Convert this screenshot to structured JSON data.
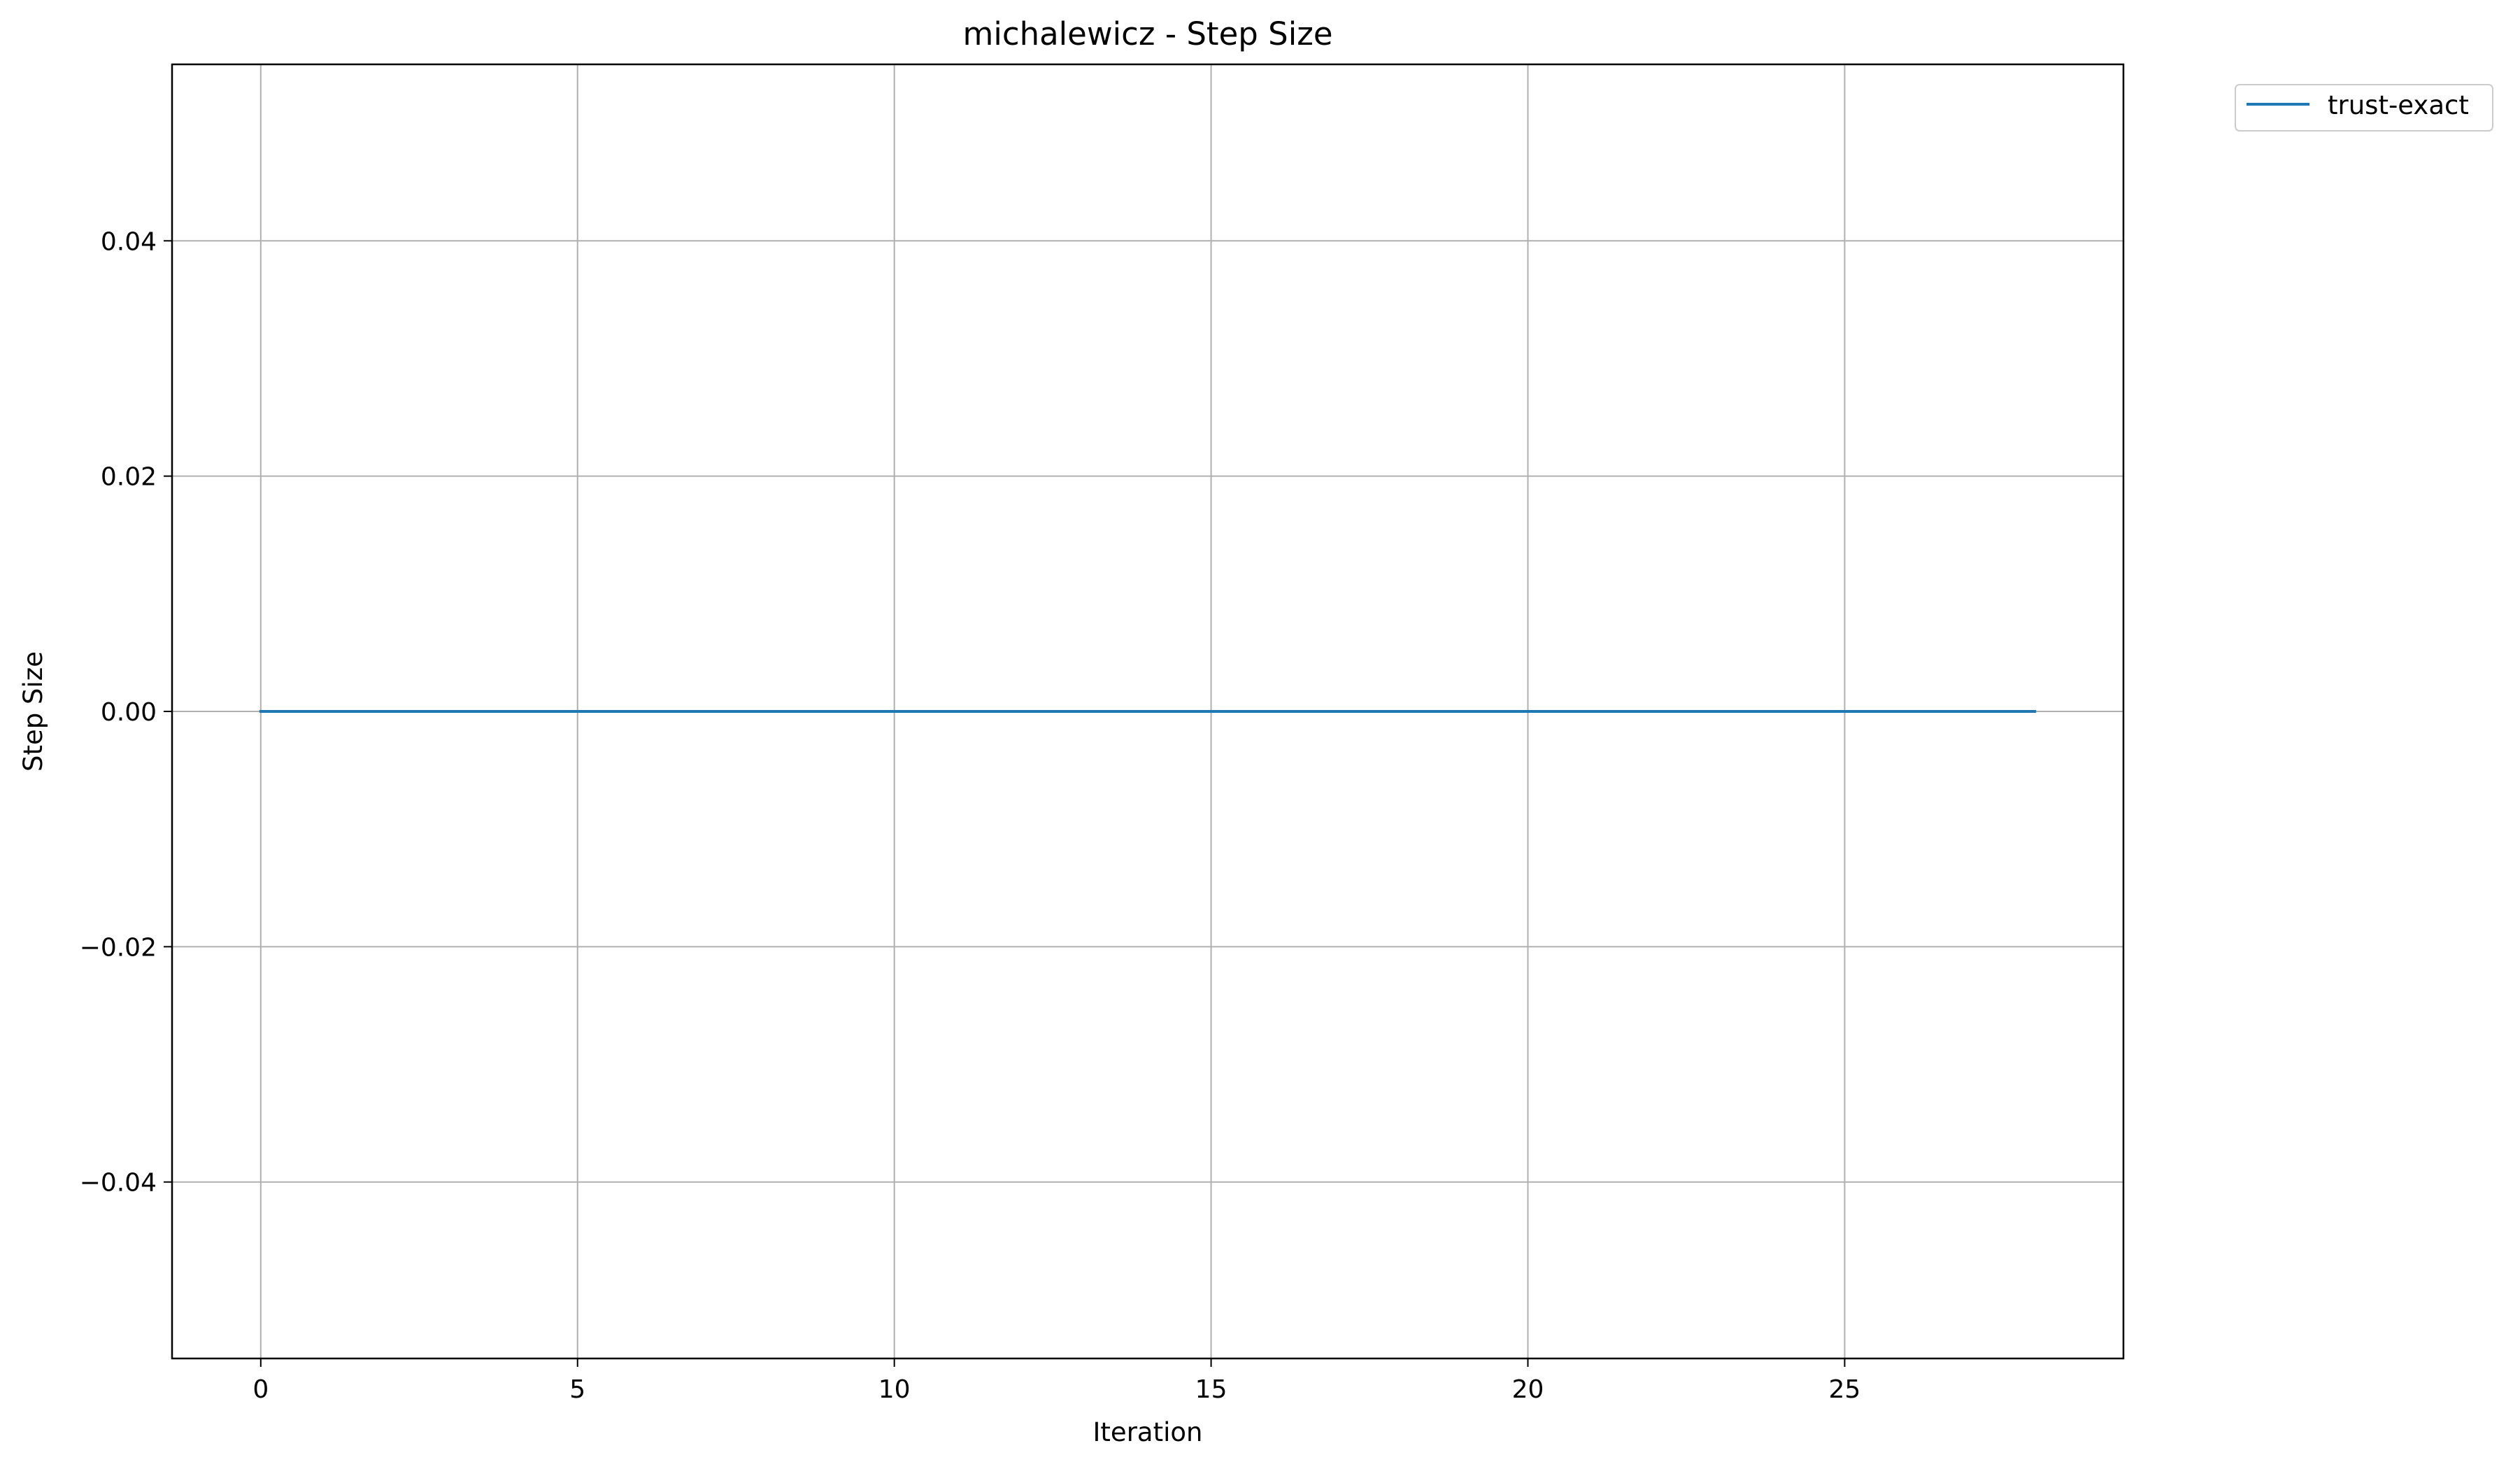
{
  "chart_data": {
    "type": "line",
    "title": "michalewicz - Step Size",
    "xlabel": "Iteration",
    "ylabel": "Step Size",
    "xlim": [
      -1.4,
      29.4
    ],
    "ylim": [
      -0.055,
      0.055
    ],
    "grid": true,
    "legend_position": "outside-top-right",
    "x_ticks": [
      0,
      5,
      10,
      15,
      20,
      25
    ],
    "x_tick_labels": [
      "0",
      "5",
      "10",
      "15",
      "20",
      "25"
    ],
    "y_ticks": [
      -0.04,
      -0.02,
      0.0,
      0.02,
      0.04
    ],
    "y_tick_labels": [
      "−0.04",
      "−0.02",
      "0.00",
      "0.02",
      "0.04"
    ],
    "series": [
      {
        "name": "trust-exact",
        "color": "#1f77b4",
        "x": [
          0,
          1,
          2,
          3,
          4,
          5,
          6,
          7,
          8,
          9,
          10,
          11,
          12,
          13,
          14,
          15,
          16,
          17,
          18,
          19,
          20,
          21,
          22,
          23,
          24,
          25,
          26,
          27,
          28
        ],
        "values": [
          0,
          0,
          0,
          0,
          0,
          0,
          0,
          0,
          0,
          0,
          0,
          0,
          0,
          0,
          0,
          0,
          0,
          0,
          0,
          0,
          0,
          0,
          0,
          0,
          0,
          0,
          0,
          0,
          0
        ]
      }
    ]
  },
  "colors": {
    "grid": "#b0b0b0",
    "axes": "#000000",
    "background": "#ffffff"
  }
}
